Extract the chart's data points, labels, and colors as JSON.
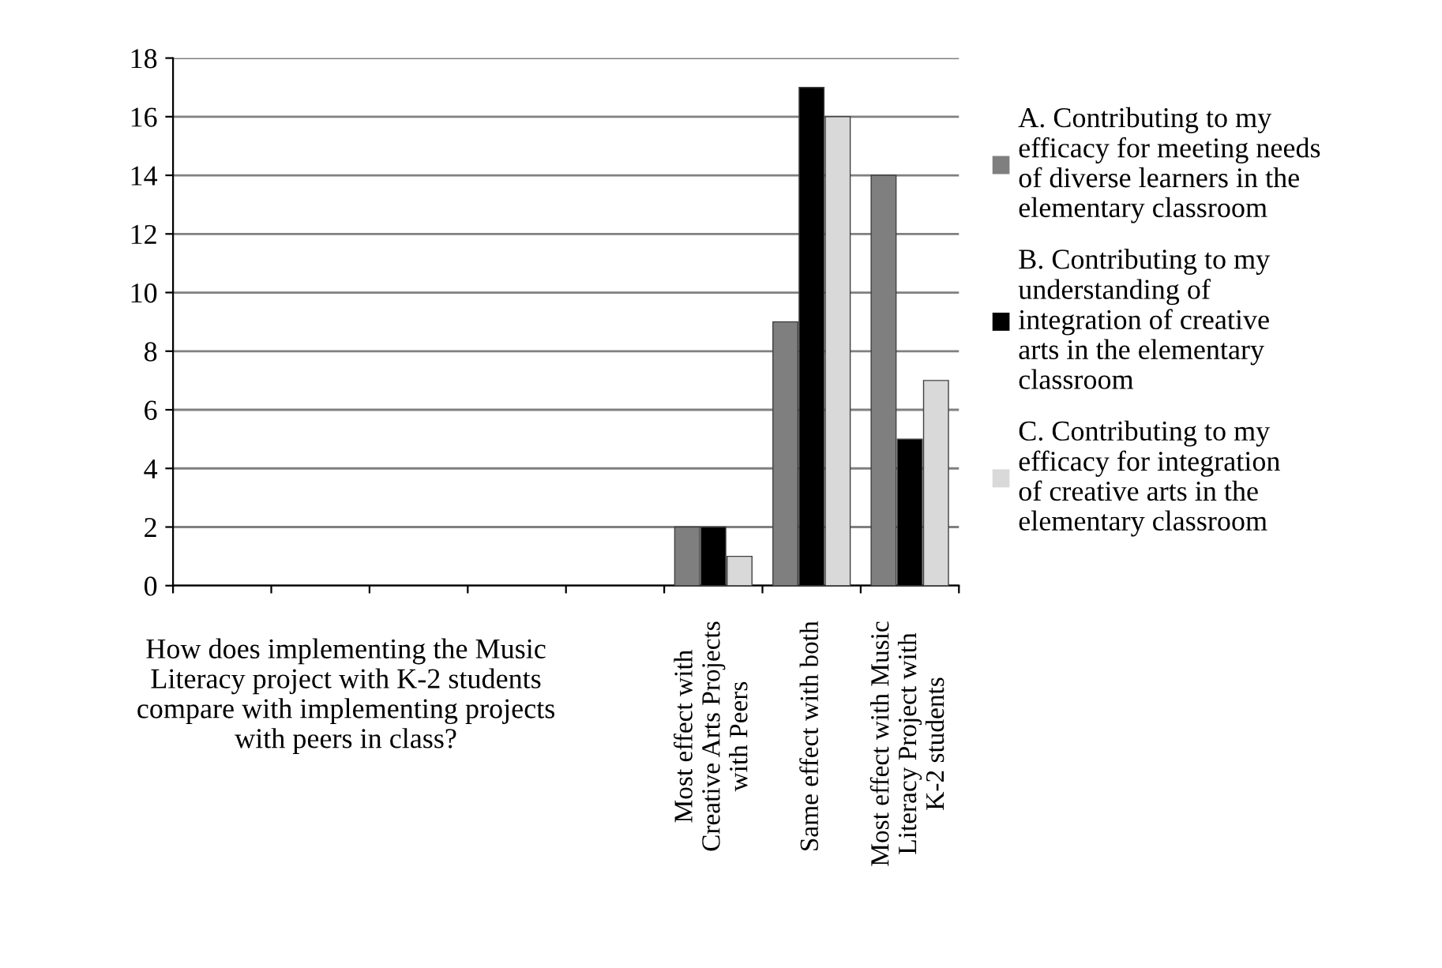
{
  "chart_data": {
    "type": "bar",
    "annotations": [
      "How does implementing the Music Literacy project with K-2 students  compare with implementing projects with peers in class?"
    ],
    "categories": [
      null,
      null,
      null,
      null,
      null,
      "Most effect with Creative Arts Projects with Peers",
      "Same effect with both",
      "Most effect with Music Literacy Project with K-2 students"
    ],
    "series": [
      {
        "name": "A. Contributing to my efficacy for meeting needs of diverse learners in the elementary classroom",
        "color": "#7f7f7f",
        "values": [
          null,
          null,
          null,
          null,
          null,
          2,
          9,
          14
        ]
      },
      {
        "name": "B. Contributing to my understanding of integration of creative arts in the elementary classroom",
        "color": "#000000",
        "values": [
          null,
          null,
          null,
          null,
          null,
          2,
          17,
          5
        ]
      },
      {
        "name": "C. Contributing to my efficacy for integration of creative arts in the elementary classroom",
        "color": "#d9d9d9",
        "values": [
          null,
          null,
          null,
          null,
          null,
          1,
          16,
          7
        ]
      }
    ],
    "ylim": [
      0,
      18
    ],
    "yticks": [
      0,
      2,
      4,
      6,
      8,
      10,
      12,
      14,
      16,
      18
    ],
    "grid": "y",
    "legend": "right"
  }
}
